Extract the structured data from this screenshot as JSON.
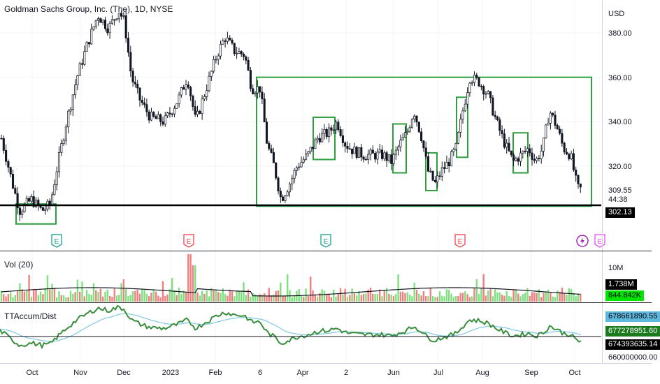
{
  "header": {
    "title": "Goldman Sachs Group, Inc. (The), 1D, NYSE"
  },
  "price_axis": {
    "currency": "USD",
    "ticks": [
      "380.00",
      "360.00",
      "340.00",
      "320.00"
    ],
    "last_price": "309.55",
    "countdown": "44:38",
    "support_price": "302.13"
  },
  "volume_pane": {
    "label": "Vol (20)",
    "axis_tick": "10M",
    "value_tag": "1.738M",
    "ma_tag": "844.842K"
  },
  "indicator_pane": {
    "label": "TTAccum/Dist",
    "tag_blue": "678661890.55",
    "tag_green": "677278951.60",
    "tag_black": "674393635.14",
    "bottom_tick": "660000000.00"
  },
  "x_axis": {
    "labels": [
      "Oct",
      "Nov",
      "Dec",
      "2023",
      "Feb",
      "6",
      "Apr",
      "2",
      "Jun",
      "Jul",
      "Aug",
      "Sep",
      "Oct"
    ]
  },
  "events": [
    {
      "label": "E",
      "type": "earnings",
      "color": "#089981"
    },
    {
      "label": "E",
      "type": "earnings",
      "color": "#f23645"
    },
    {
      "label": "E",
      "type": "earnings",
      "color": "#089981"
    },
    {
      "label": "E",
      "type": "earnings",
      "color": "#f23645"
    },
    {
      "label": "",
      "type": "dividend-flash",
      "color": "#9c27b0"
    },
    {
      "label": "E",
      "type": "upcoming-earnings",
      "color": "#e040fb"
    }
  ],
  "colors": {
    "up": "#26a69a",
    "down": "#ef5350",
    "candle": "#131722",
    "box": "#2e9e3f",
    "acc_line": "#388e3c",
    "acc_ma": "#7ec8e3",
    "support": "#000000"
  },
  "chart_data": {
    "type": "candlestick",
    "y_range": [
      293,
      392
    ],
    "y_ticks": [
      380,
      360,
      340,
      320
    ],
    "support_level": 302.13,
    "last_close": 309.55,
    "price_path": [
      [
        0,
        335
      ],
      [
        8,
        325
      ],
      [
        18,
        312
      ],
      [
        28,
        300
      ],
      [
        45,
        305
      ],
      [
        60,
        300
      ],
      [
        72,
        303
      ],
      [
        82,
        320
      ],
      [
        95,
        340
      ],
      [
        110,
        360
      ],
      [
        125,
        375
      ],
      [
        140,
        388
      ],
      [
        155,
        382
      ],
      [
        170,
        390
      ],
      [
        178,
        385
      ],
      [
        188,
        360
      ],
      [
        200,
        350
      ],
      [
        215,
        342
      ],
      [
        235,
        340
      ],
      [
        255,
        350
      ],
      [
        268,
        360
      ],
      [
        280,
        340
      ],
      [
        295,
        355
      ],
      [
        310,
        370
      ],
      [
        322,
        378
      ],
      [
        335,
        372
      ],
      [
        350,
        370
      ],
      [
        360,
        355
      ],
      [
        372,
        355
      ],
      [
        382,
        330
      ],
      [
        392,
        320
      ],
      [
        402,
        305
      ],
      [
        414,
        312
      ],
      [
        425,
        320
      ],
      [
        440,
        325
      ],
      [
        455,
        333
      ],
      [
        470,
        335
      ],
      [
        482,
        340
      ],
      [
        494,
        330
      ],
      [
        505,
        327
      ],
      [
        520,
        325
      ],
      [
        535,
        325
      ],
      [
        548,
        325
      ],
      [
        560,
        322
      ],
      [
        572,
        330
      ],
      [
        582,
        335
      ],
      [
        592,
        345
      ],
      [
        603,
        333
      ],
      [
        612,
        318
      ],
      [
        622,
        312
      ],
      [
        632,
        318
      ],
      [
        642,
        322
      ],
      [
        652,
        328
      ],
      [
        662,
        345
      ],
      [
        672,
        360
      ],
      [
        685,
        358
      ],
      [
        698,
        352
      ],
      [
        710,
        340
      ],
      [
        722,
        330
      ],
      [
        734,
        322
      ],
      [
        745,
        325
      ],
      [
        756,
        328
      ],
      [
        766,
        322
      ],
      [
        776,
        328
      ],
      [
        786,
        345
      ],
      [
        796,
        338
      ],
      [
        806,
        328
      ],
      [
        816,
        325
      ],
      [
        826,
        310
      ],
      [
        833,
        309.55
      ]
    ],
    "boxes": [
      {
        "x_start": 23,
        "x_end": 80,
        "y_low": 294,
        "y_high": 303
      },
      {
        "x_start": 367,
        "x_end": 846,
        "y_low": 302,
        "y_high": 360
      },
      {
        "x_start": 448,
        "x_end": 479,
        "y_low": 323,
        "y_high": 342
      },
      {
        "x_start": 562,
        "x_end": 581,
        "y_low": 317,
        "y_high": 339
      },
      {
        "x_start": 609,
        "x_end": 625,
        "y_low": 309,
        "y_high": 326
      },
      {
        "x_start": 653,
        "x_end": 669,
        "y_low": 324,
        "y_high": 351
      },
      {
        "x_start": 734,
        "x_end": 755,
        "y_low": 317,
        "y_high": 335
      }
    ]
  }
}
